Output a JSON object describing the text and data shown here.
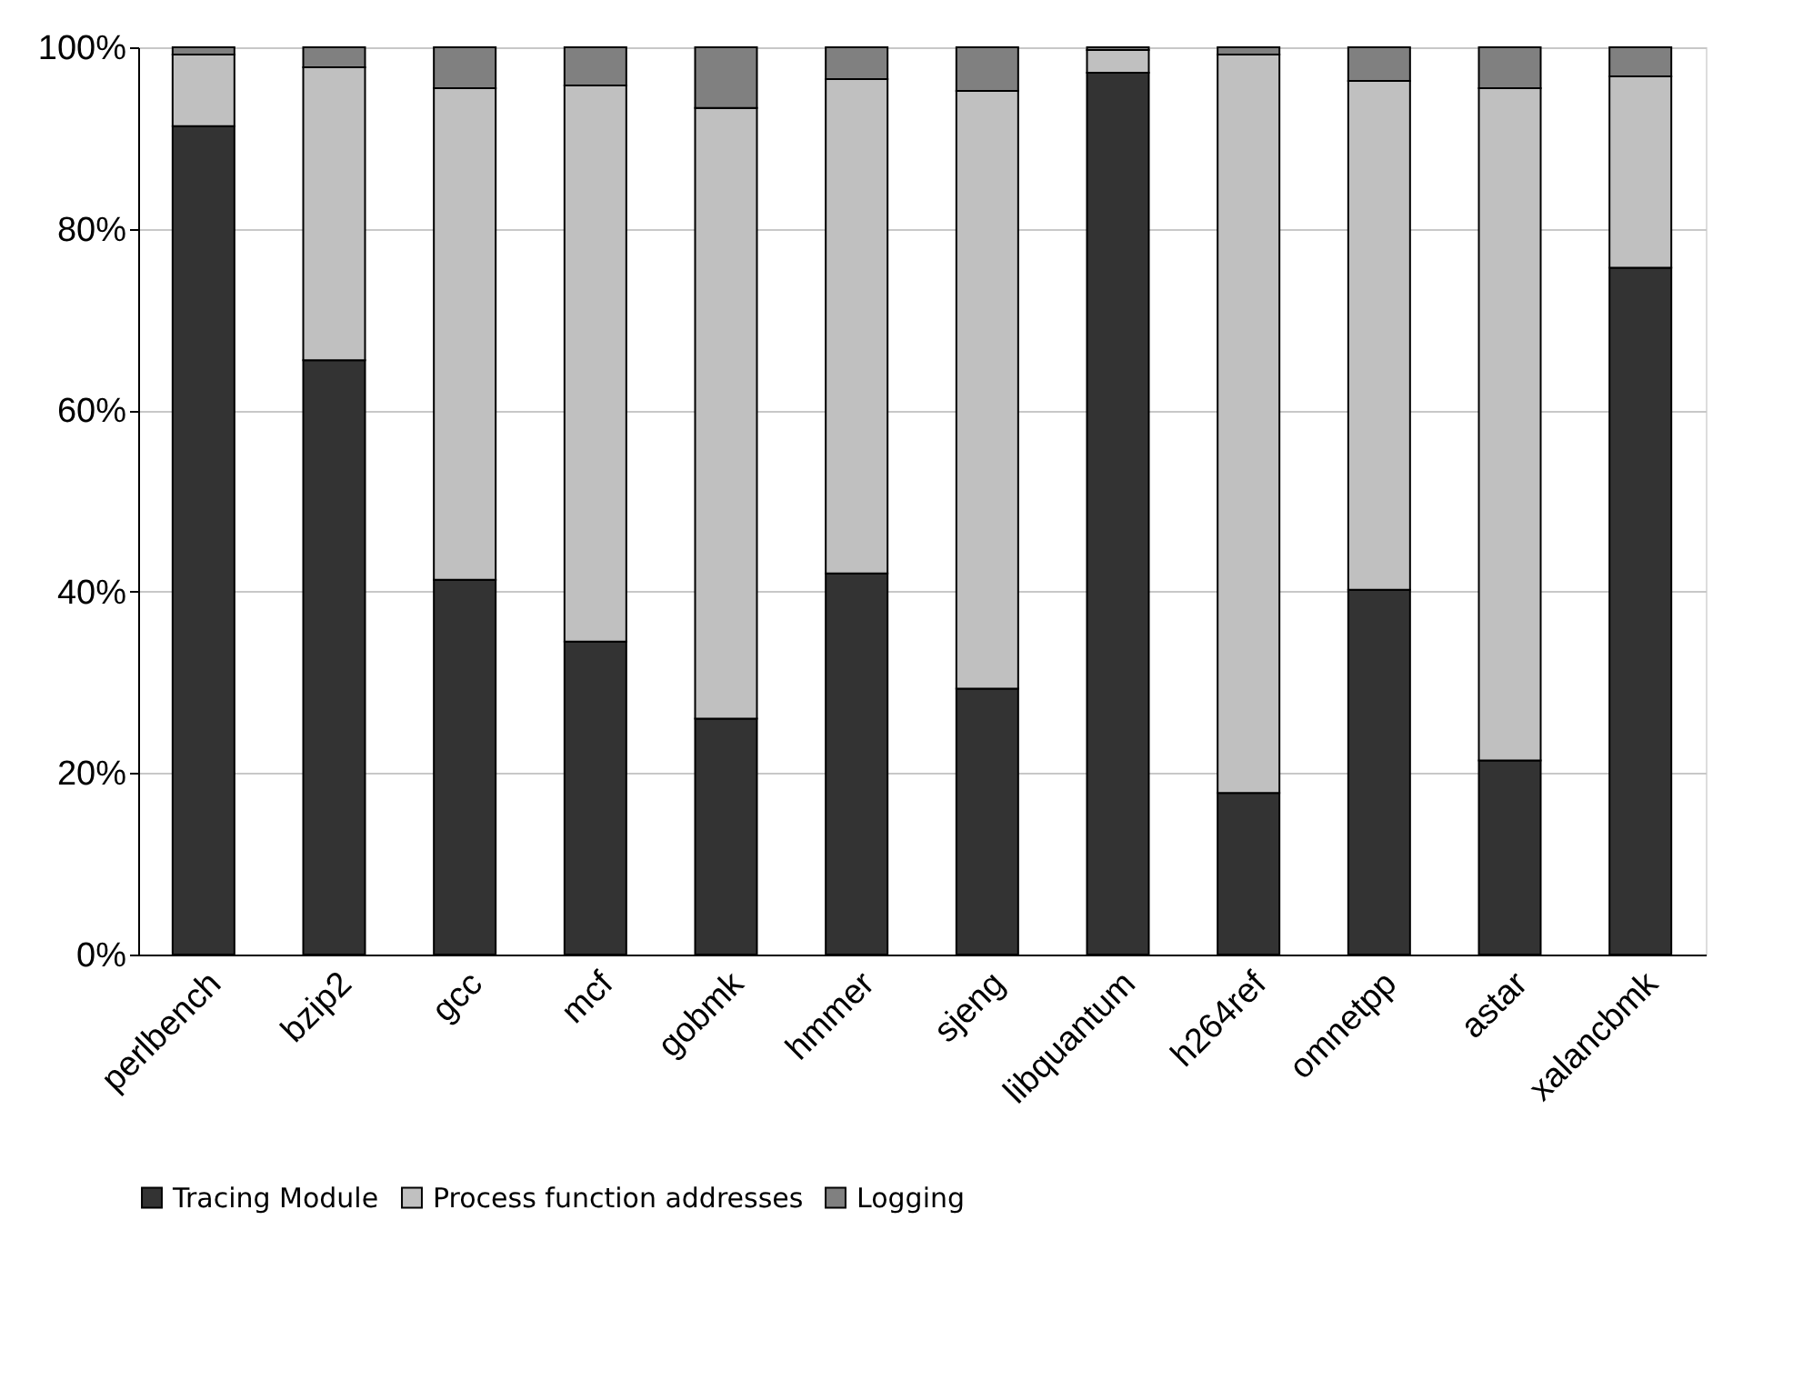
{
  "chart_data": {
    "type": "bar",
    "stacked": true,
    "categories": [
      "perlbench",
      "bzip2",
      "gcc",
      "mcf",
      "gobmk",
      "hmmer",
      "sjeng",
      "libquantum",
      "h264ref",
      "omnetpp",
      "astar",
      "xalancbmk"
    ],
    "series": [
      {
        "name": "Tracing Module",
        "color": "#333333",
        "values": [
          91.3,
          65.5,
          41.3,
          34.5,
          26,
          42,
          29.3,
          97.2,
          17.8,
          40.2,
          21.4,
          75.7
        ]
      },
      {
        "name": "Process function addresses",
        "color": "#c0c0c0",
        "values": [
          7.9,
          32.3,
          54.2,
          61.3,
          67.3,
          54.5,
          65.9,
          2.5,
          81.4,
          56.1,
          74.1,
          21.1
        ]
      },
      {
        "name": "Logging",
        "color": "#808080",
        "values": [
          0.8,
          2.2,
          4.5,
          4.2,
          6.7,
          3.5,
          4.8,
          0.3,
          0.8,
          3.7,
          4.5,
          3.2
        ]
      }
    ],
    "ylim": [
      0,
      100
    ],
    "yticks": [
      {
        "value": 0,
        "label": "0%"
      },
      {
        "value": 20,
        "label": "20%"
      },
      {
        "value": 40,
        "label": "40%"
      },
      {
        "value": 60,
        "label": "60%"
      },
      {
        "value": 80,
        "label": "80%"
      },
      {
        "value": 100,
        "label": "100%"
      }
    ],
    "grid": "y",
    "legend": "bottom"
  }
}
